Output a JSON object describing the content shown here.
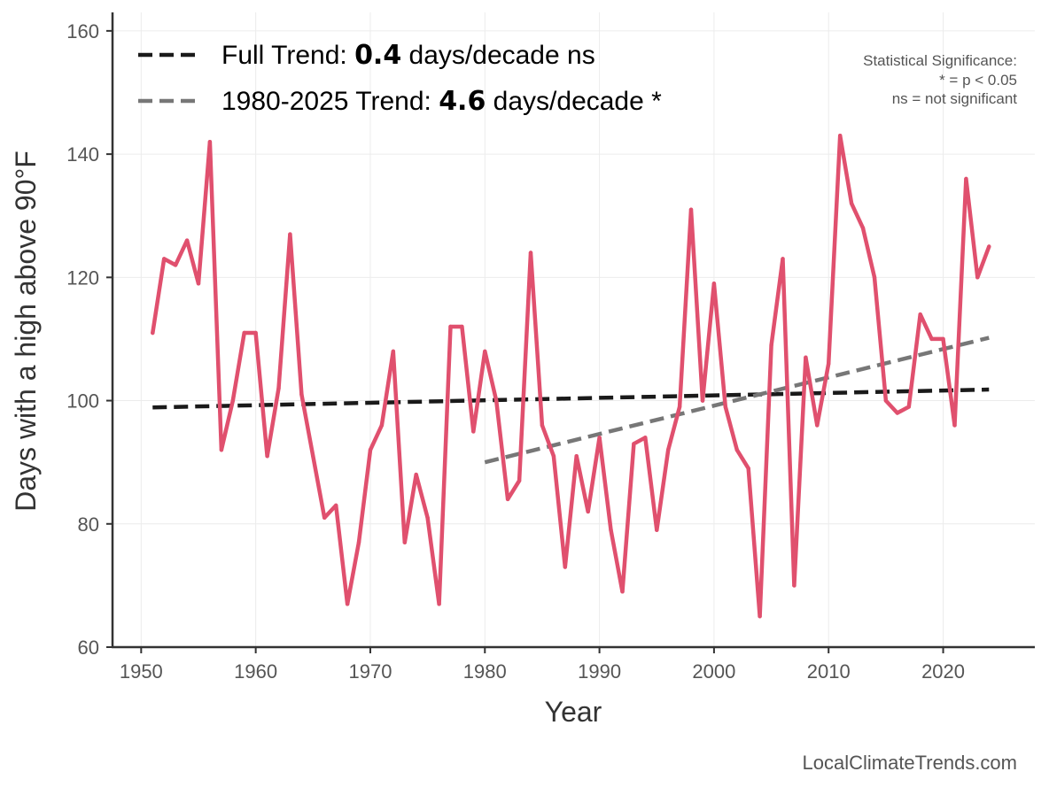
{
  "chart_data": {
    "type": "line",
    "xlabel": "Year",
    "ylabel": "Days with a high above 90°F",
    "xlim": [
      1947.5,
      2028
    ],
    "ylim": [
      60,
      163
    ],
    "xticks": [
      1950,
      1960,
      1970,
      1980,
      1990,
      2000,
      2010,
      2020
    ],
    "yticks": [
      60,
      80,
      100,
      120,
      140,
      160
    ],
    "grid": true,
    "series": [
      {
        "name": "Days with a high above 90°F",
        "color": "#e0506e",
        "x": [
          1951,
          1952,
          1953,
          1954,
          1955,
          1956,
          1957,
          1958,
          1959,
          1960,
          1961,
          1962,
          1963,
          1964,
          1965,
          1966,
          1967,
          1968,
          1969,
          1970,
          1971,
          1972,
          1973,
          1974,
          1975,
          1976,
          1977,
          1978,
          1979,
          1980,
          1981,
          1982,
          1983,
          1984,
          1985,
          1986,
          1987,
          1988,
          1989,
          1990,
          1991,
          1992,
          1993,
          1994,
          1995,
          1996,
          1997,
          1998,
          1999,
          2000,
          2001,
          2002,
          2003,
          2004,
          2005,
          2006,
          2007,
          2008,
          2009,
          2010,
          2011,
          2012,
          2013,
          2014,
          2015,
          2016,
          2017,
          2018,
          2019,
          2020,
          2021,
          2022,
          2023,
          2024
        ],
        "values": [
          111,
          123,
          122,
          126,
          119,
          142,
          92,
          100,
          111,
          111,
          91,
          102,
          127,
          101,
          91,
          81,
          83,
          67,
          77,
          92,
          96,
          108,
          77,
          88,
          81,
          67,
          112,
          112,
          95,
          108,
          100,
          84,
          87,
          124,
          96,
          91,
          73,
          91,
          82,
          94,
          79,
          69,
          93,
          94,
          79,
          92,
          99,
          131,
          100,
          119,
          99,
          92,
          89,
          65,
          109,
          123,
          70,
          107,
          96,
          106,
          143,
          132,
          128,
          120,
          100,
          98,
          99,
          114,
          110,
          110,
          96,
          136,
          120,
          125
        ]
      }
    ],
    "trend_lines": [
      {
        "name": "Full Trend",
        "color": "#1a1a1a",
        "x": [
          1951,
          2024
        ],
        "y": [
          98.9,
          101.8
        ]
      },
      {
        "name": "1980-2025 Trend",
        "color": "#777777",
        "x": [
          1980,
          2024
        ],
        "y": [
          90.0,
          110.2
        ]
      }
    ],
    "legend": {
      "position": "top-left",
      "items": [
        {
          "prefix": "Full Trend: ",
          "value": "0.4",
          "suffix": " days/decade ns",
          "color": "#1a1a1a"
        },
        {
          "prefix": "1980-2025 Trend: ",
          "value": "4.6",
          "suffix": " days/decade *",
          "color": "#777777"
        }
      ]
    },
    "annotation": {
      "position": "top-right",
      "lines": [
        "Statistical Significance:",
        "* = p < 0.05",
        "ns = not significant"
      ]
    },
    "credit": "LocalClimateTrends.com"
  }
}
